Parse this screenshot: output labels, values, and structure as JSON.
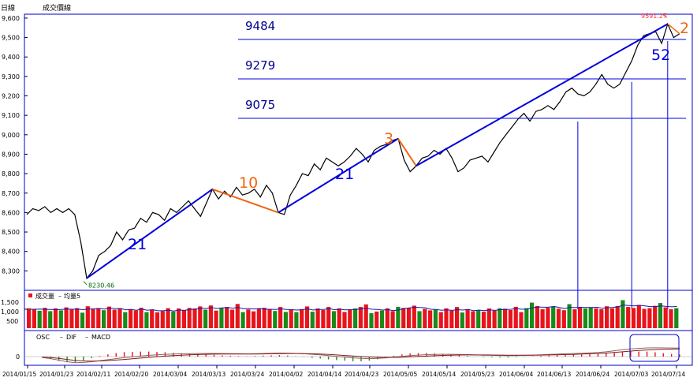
{
  "header": {
    "period_label": "日線",
    "chart_label": "成交價線"
  },
  "colors": {
    "price": "#000000",
    "trend": "#0000dd",
    "swing": "#ee6611",
    "up": "#e8141c",
    "down": "#1a8a1a",
    "avg": "#1a1aa8",
    "dif": "#886666",
    "macd": "#8b1a1a",
    "osc_pos": "#e8141c",
    "osc_neg": "#1a8a1a",
    "frame": "#0000cc",
    "grid": "#a0a0a0",
    "label_hi": "#ff3333"
  },
  "chart_data": [
    {
      "type": "line",
      "title": "成交價線",
      "ylim": [
        8200,
        9620
      ],
      "yticks": [
        "9,600",
        "9,500",
        "9,400",
        "9,300",
        "9,200",
        "9,100",
        "9,000",
        "8,900",
        "8,800",
        "8,700",
        "8,600",
        "8,500",
        "8,400",
        "8,300"
      ],
      "series": [
        {
          "values": [
            8590,
            8620,
            8610,
            8630,
            8600,
            8620,
            8600,
            8620,
            8590,
            8450,
            8262,
            8300,
            8380,
            8400,
            8430,
            8500,
            8460,
            8510,
            8520,
            8570,
            8550,
            8600,
            8590,
            8560,
            8620,
            8600,
            8630,
            8660,
            8620,
            8580,
            8650,
            8720,
            8670,
            8710,
            8680,
            8730,
            8690,
            8700,
            8720,
            8680,
            8740,
            8700,
            8600,
            8590,
            8690,
            8740,
            8800,
            8790,
            8850,
            8820,
            8880,
            8860,
            8840,
            8860,
            8890,
            8930,
            8900,
            8860,
            8920,
            8940,
            8950,
            8970,
            8980,
            8870,
            8810,
            8840,
            8880,
            8890,
            8920,
            8900,
            8930,
            8880,
            8810,
            8830,
            8870,
            8880,
            8890,
            8860,
            8910,
            8960,
            9000,
            9040,
            9080,
            9110,
            9070,
            9120,
            9130,
            9150,
            9130,
            9170,
            9220,
            9240,
            9210,
            9200,
            9220,
            9260,
            9310,
            9260,
            9240,
            9260,
            9320,
            9380,
            9460,
            9510,
            9520,
            9530,
            9470,
            9570,
            9500,
            9520
          ]
        }
      ],
      "high_label": "9591.27",
      "low_label": "8230.46",
      "levels": [
        "9484",
        "9279",
        "9075"
      ],
      "counts": [
        {
          "text": "21",
          "color": "trend"
        },
        {
          "text": "10",
          "color": "swing"
        },
        {
          "text": "21",
          "color": "trend"
        },
        {
          "text": "3",
          "color": "swing"
        },
        {
          "text": "52",
          "color": "trend"
        },
        {
          "text": "2",
          "color": "swing"
        }
      ],
      "xticks": [
        "2014/01/15",
        "2014/01/23",
        "2014/02/11",
        "2014/02/20",
        "2014/03/04",
        "2014/03/13",
        "2014/03/24",
        "2014/04/02",
        "2014/04/14",
        "2014/04/23",
        "2014/05/05",
        "2014/05/14",
        "2014/05/23",
        "2014/06/04",
        "2014/06/13",
        "2014/06/24",
        "2014/07/03",
        "2014/07/14"
      ]
    },
    {
      "type": "bar",
      "title": "成交量",
      "legend": [
        "成交量",
        "均量5"
      ],
      "ylim": [
        0,
        1600
      ],
      "yticks": [
        "1,500",
        "1,000",
        "500"
      ],
      "values": [
        1050,
        1010,
        920,
        1080,
        900,
        1050,
        940,
        1100,
        980,
        1060,
        820,
        1160,
        1000,
        1060,
        950,
        1140,
        980,
        1050,
        850,
        1010,
        930,
        1080,
        850,
        970,
        840,
        900,
        1060,
        880,
        1040,
        950,
        1070,
        1040,
        1150,
        980,
        1200,
        930,
        1060,
        1120,
        980,
        1280,
        850,
        990,
        890,
        1030,
        1080,
        1000,
        910,
        1120,
        860,
        990,
        850,
        1010,
        1150,
        870,
        1040,
        960,
        1120,
        900,
        1050,
        860,
        960,
        1040,
        1120,
        1260,
        790,
        880,
        930,
        1050,
        900,
        1130,
        1070,
        1080,
        1190,
        900,
        1020,
        940,
        980,
        850,
        1050,
        930,
        1120,
        830,
        1010,
        890,
        960,
        870,
        1040,
        930,
        1050,
        1030,
        960,
        1130,
        850,
        1060,
        1350,
        1170,
        1000,
        1080,
        1150,
        1030,
        950,
        1270,
        1000,
        1120,
        1040,
        1090,
        1050,
        1000,
        1160,
        1050,
        1170,
        1480,
        1120,
        1070,
        1230,
        1020,
        1060,
        1180,
        1330,
        1100,
        1000,
        1060
      ],
      "up": [
        1,
        1,
        0,
        1,
        0,
        1,
        0,
        1,
        1,
        1,
        0,
        1,
        1,
        1,
        0,
        1,
        1,
        1,
        0,
        1,
        1,
        1,
        0,
        1,
        1,
        1,
        1,
        0,
        1,
        1,
        1,
        1,
        1,
        0,
        1,
        1,
        0,
        1,
        1,
        1,
        0,
        1,
        1,
        1,
        1,
        1,
        0,
        1,
        0,
        1,
        0,
        1,
        1,
        0,
        1,
        1,
        1,
        0,
        1,
        1,
        1,
        0,
        1,
        1,
        0,
        1,
        0,
        1,
        1,
        0,
        1,
        1,
        1,
        0,
        1,
        1,
        0,
        1,
        1,
        1,
        1,
        0,
        1,
        1,
        0,
        1,
        1,
        1,
        0,
        1,
        1,
        1,
        1,
        0,
        0,
        1,
        1,
        1,
        0,
        1,
        1,
        0,
        1,
        1,
        0,
        0,
        1,
        1,
        1,
        1,
        1,
        0,
        1,
        1,
        1,
        1,
        1,
        1,
        0,
        1,
        1,
        0
      ],
      "avg5": [
        1000,
        1000,
        1010,
        990,
        990,
        980,
        990,
        1010,
        1000,
        1010,
        980,
        1010,
        1020,
        1040,
        1010,
        1060,
        1030,
        1040,
        970,
        990,
        950,
        1010,
        950,
        980,
        920,
        920,
        950,
        910,
        960,
        940,
        990,
        1000,
        1050,
        1040,
        1090,
        1040,
        1070,
        1090,
        1060,
        1100,
        1020,
        1040,
        1010,
        1040,
        1000,
        1000,
        990,
        1020,
        990,
        980,
        960,
        980,
        1020,
        960,
        990,
        990,
        1030,
        980,
        1000,
        970,
        980,
        990,
        1020,
        1050,
        1000,
        990,
        960,
        980,
        930,
        970,
        1030,
        1070,
        1110,
        1090,
        1080,
        1000,
        990,
        950,
        970,
        940,
        980,
        960,
        990,
        920,
        960,
        930,
        970,
        940,
        980,
        980,
        1000,
        1030,
        1000,
        1010,
        1070,
        1120,
        1110,
        1110,
        1150,
        1090,
        1040,
        1100,
        1090,
        1100,
        1100,
        1090,
        1110,
        1060,
        1080,
        1100,
        1130,
        1220,
        1200,
        1180,
        1210,
        1180,
        1140,
        1140,
        1180,
        1150,
        1130,
        1150
      ],
      "avg_color": "avg"
    },
    {
      "type": "line",
      "title": "MACD",
      "legend": [
        "OSC",
        "DIF",
        "MACD"
      ],
      "ylim": [
        -220,
        220
      ],
      "yticks": [
        "0"
      ],
      "dif": [
        -20,
        -40,
        -70,
        -100,
        -120,
        -115,
        -100,
        -80,
        -60,
        -40,
        -20,
        -5,
        10,
        25,
        35,
        45,
        50,
        55,
        58,
        60,
        62,
        62,
        60,
        58,
        55,
        52,
        55,
        60,
        65,
        70,
        68,
        62,
        55,
        45,
        35,
        20,
        5,
        -10,
        -25,
        -35,
        -40,
        -35,
        -25,
        -10,
        5,
        20,
        30,
        38,
        42,
        45,
        45,
        42,
        38,
        32,
        28,
        25,
        22,
        20,
        22,
        25,
        30,
        36,
        42,
        48,
        55,
        60,
        65,
        72,
        80,
        95,
        115,
        135,
        150,
        160,
        170,
        172,
        170,
        168,
        165
      ],
      "macd": [
        -10,
        -20,
        -35,
        -55,
        -75,
        -85,
        -88,
        -85,
        -78,
        -68,
        -55,
        -42,
        -30,
        -15,
        -2,
        10,
        20,
        28,
        35,
        40,
        45,
        48,
        50,
        51,
        51,
        50,
        50,
        52,
        55,
        58,
        60,
        60,
        58,
        55,
        50,
        42,
        33,
        22,
        12,
        2,
        -8,
        -14,
        -17,
        -16,
        -12,
        -5,
        2,
        10,
        17,
        23,
        28,
        31,
        33,
        33,
        32,
        31,
        30,
        28,
        27,
        27,
        28,
        30,
        33,
        36,
        40,
        44,
        49,
        54,
        60,
        70,
        82,
        95,
        108,
        120,
        130,
        138,
        143,
        147,
        150
      ],
      "osc": [
        -10,
        -20,
        -35,
        -45,
        -45,
        -30,
        -12,
        5,
        18,
        28,
        35,
        37,
        40,
        40,
        37,
        35,
        30,
        27,
        23,
        20,
        17,
        14,
        10,
        7,
        4,
        2,
        5,
        8,
        10,
        12,
        8,
        2,
        -3,
        -10,
        -15,
        -22,
        -28,
        -32,
        -37,
        -37,
        -32,
        -21,
        -8,
        6,
        17,
        25,
        28,
        28,
        25,
        22,
        17,
        11,
        5,
        -1,
        -4,
        -6,
        -8,
        -8,
        -5,
        -2,
        2,
        6,
        9,
        12,
        15,
        16,
        16,
        18,
        20,
        25,
        33,
        40,
        42,
        40,
        40,
        34,
        27,
        21,
        15
      ],
      "highlight": "box"
    }
  ]
}
